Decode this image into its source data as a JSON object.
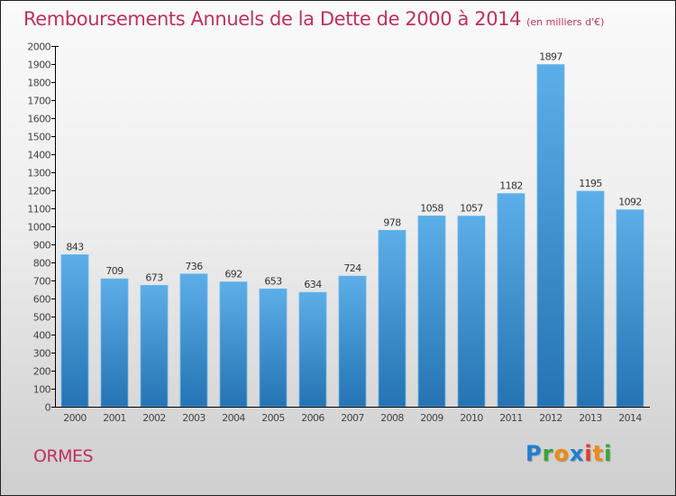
{
  "header": {
    "title": "Remboursements Annuels de la Dette de 2000 à 2014",
    "unit": "(en milliers d'€)"
  },
  "footer": {
    "place_name": "ORMES",
    "logo": {
      "letters": [
        "P",
        "r",
        "o",
        "x",
        "i",
        "t",
        "i"
      ],
      "text": "Proxiti"
    }
  },
  "colors": {
    "title": "#c0305e",
    "bar_top": "#5caee8",
    "bar_bottom": "#2573b3",
    "axis": "#000000"
  },
  "chart_data": {
    "type": "bar",
    "title": "Remboursements Annuels de la Dette de 2000 à 2014",
    "subtitle": "(en milliers d'€)",
    "xlabel": "",
    "ylabel": "",
    "categories": [
      "2000",
      "2001",
      "2002",
      "2003",
      "2004",
      "2005",
      "2006",
      "2007",
      "2008",
      "2009",
      "2010",
      "2011",
      "2012",
      "2013",
      "2014"
    ],
    "values": [
      843,
      709,
      673,
      736,
      692,
      653,
      634,
      724,
      978,
      1058,
      1057,
      1182,
      1897,
      1195,
      1092
    ],
    "ylim": [
      0,
      2000
    ],
    "yticks": [
      0,
      100,
      200,
      300,
      400,
      500,
      600,
      700,
      800,
      900,
      1000,
      1100,
      1200,
      1300,
      1400,
      1500,
      1600,
      1700,
      1800,
      1900,
      2000
    ],
    "grid": false,
    "legend": "none",
    "data_labels": true
  }
}
